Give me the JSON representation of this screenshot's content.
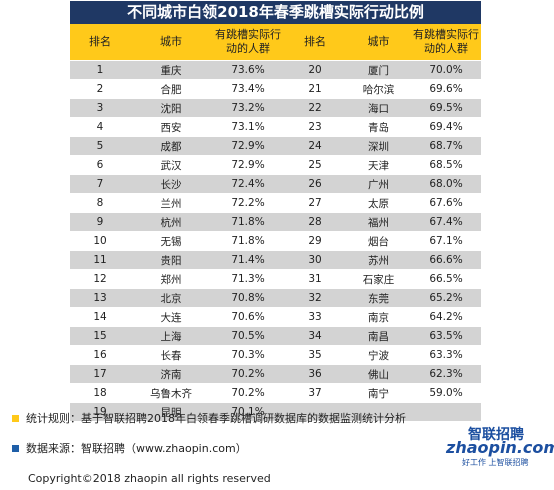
{
  "title": "不同城市白领2018年春季跳槽实际行动比例",
  "headers": {
    "rank": "排名",
    "city": "城市",
    "ratio": "有跳槽实际行动的人群",
    "rank2": "排名",
    "city2": "城市",
    "ratio2": "有跳槽实际行动的人群"
  },
  "left_rows": [
    {
      "rank": "1",
      "city": "重庆",
      "ratio": "73.6%"
    },
    {
      "rank": "2",
      "city": "合肥",
      "ratio": "73.4%"
    },
    {
      "rank": "3",
      "city": "沈阳",
      "ratio": "73.2%"
    },
    {
      "rank": "4",
      "city": "西安",
      "ratio": "73.1%"
    },
    {
      "rank": "5",
      "city": "成都",
      "ratio": "72.9%"
    },
    {
      "rank": "6",
      "city": "武汉",
      "ratio": "72.9%"
    },
    {
      "rank": "7",
      "city": "长沙",
      "ratio": "72.4%"
    },
    {
      "rank": "8",
      "city": "兰州",
      "ratio": "72.2%"
    },
    {
      "rank": "9",
      "city": "杭州",
      "ratio": "71.8%"
    },
    {
      "rank": "10",
      "city": "无锡",
      "ratio": "71.8%"
    },
    {
      "rank": "11",
      "city": "贵阳",
      "ratio": "71.4%"
    },
    {
      "rank": "12",
      "city": "郑州",
      "ratio": "71.3%"
    },
    {
      "rank": "13",
      "city": "北京",
      "ratio": "70.8%"
    },
    {
      "rank": "14",
      "city": "大连",
      "ratio": "70.6%"
    },
    {
      "rank": "15",
      "city": "上海",
      "ratio": "70.5%"
    },
    {
      "rank": "16",
      "city": "长春",
      "ratio": "70.3%"
    },
    {
      "rank": "17",
      "city": "济南",
      "ratio": "70.2%"
    },
    {
      "rank": "18",
      "city": "乌鲁木齐",
      "ratio": "70.2%"
    },
    {
      "rank": "19",
      "city": "昆明",
      "ratio": "70.1%"
    }
  ],
  "right_rows": [
    {
      "rank": "20",
      "city": "厦门",
      "ratio": "70.0%"
    },
    {
      "rank": "21",
      "city": "哈尔滨",
      "ratio": "69.6%"
    },
    {
      "rank": "22",
      "city": "海口",
      "ratio": "69.5%"
    },
    {
      "rank": "23",
      "city": "青岛",
      "ratio": "69.4%"
    },
    {
      "rank": "24",
      "city": "深圳",
      "ratio": "68.7%"
    },
    {
      "rank": "25",
      "city": "天津",
      "ratio": "68.5%"
    },
    {
      "rank": "26",
      "city": "广州",
      "ratio": "68.0%"
    },
    {
      "rank": "27",
      "city": "太原",
      "ratio": "67.6%"
    },
    {
      "rank": "28",
      "city": "福州",
      "ratio": "67.4%"
    },
    {
      "rank": "29",
      "city": "烟台",
      "ratio": "67.1%"
    },
    {
      "rank": "30",
      "city": "苏州",
      "ratio": "66.6%"
    },
    {
      "rank": "31",
      "city": "石家庄",
      "ratio": "66.5%"
    },
    {
      "rank": "32",
      "city": "东莞",
      "ratio": "65.2%"
    },
    {
      "rank": "33",
      "city": "南京",
      "ratio": "64.2%"
    },
    {
      "rank": "34",
      "city": "南昌",
      "ratio": "63.5%"
    },
    {
      "rank": "35",
      "city": "宁波",
      "ratio": "63.3%"
    },
    {
      "rank": "36",
      "city": "佛山",
      "ratio": "62.3%"
    },
    {
      "rank": "37",
      "city": "南宁",
      "ratio": "59.0%"
    },
    {
      "rank": "",
      "city": "",
      "ratio": ""
    }
  ],
  "notes": {
    "rule": "统计规则：基于智联招聘2018年白领春季跳槽调研数据库的数据监测统计分析",
    "source": "数据来源：智联招聘（www.zhaopin.com）"
  },
  "colors": {
    "title_bg": "#1f3864",
    "header_bg": "#ffc91a",
    "row_shade": "#d3d3d3",
    "bullet_rule": "#ffc91a",
    "bullet_source": "#1f5fa8",
    "logo": "#1c4fa0"
  },
  "logo": {
    "cn": "智联招聘",
    "en": "zhaopin.com",
    "tagline": "好工作 上智联招聘"
  },
  "copyright": "Copyright©2018 zhaopin all rights reserved"
}
